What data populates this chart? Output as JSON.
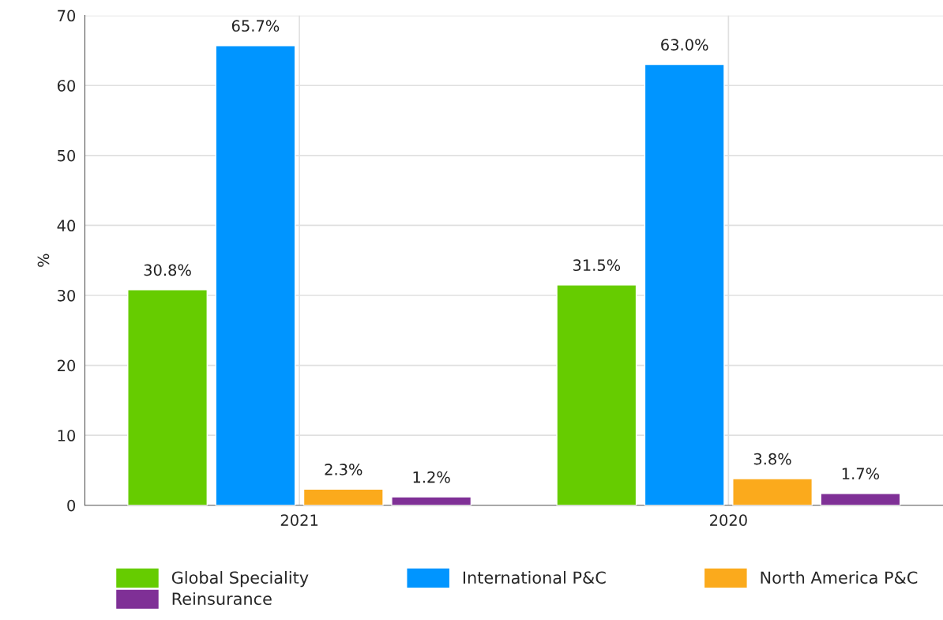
{
  "chart_data": {
    "type": "bar",
    "ylabel": "%",
    "categories": [
      "2021",
      "2020"
    ],
    "series": [
      {
        "name": "Global Speciality",
        "color": "#66cc00",
        "values": [
          30.8,
          31.5
        ],
        "value_labels": [
          "30.8%",
          "31.5%"
        ]
      },
      {
        "name": "International P&C",
        "color": "#0095ff",
        "values": [
          65.7,
          63.0
        ],
        "value_labels": [
          "65.7%",
          "63.0%"
        ]
      },
      {
        "name": "North America P&C",
        "color": "#fbaa1c",
        "values": [
          2.3,
          3.8
        ],
        "value_labels": [
          "2.3%",
          "3.8%"
        ]
      },
      {
        "name": "Reinsurance",
        "color": "#7f3096",
        "values": [
          1.2,
          1.7
        ],
        "value_labels": [
          "1.2%",
          "1.7%"
        ]
      }
    ],
    "ylim": [
      0,
      70
    ],
    "yticks": [
      0,
      10,
      20,
      30,
      40,
      50,
      60,
      70
    ],
    "grid": true,
    "legend": "bottom"
  }
}
